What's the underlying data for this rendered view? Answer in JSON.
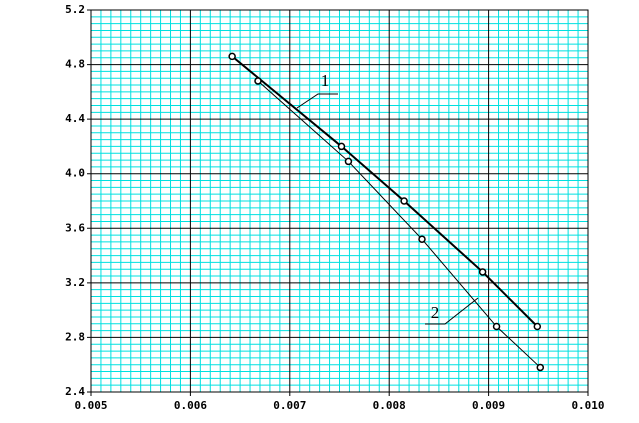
{
  "chart_data": {
    "type": "line",
    "xlim": [
      0.005,
      0.01
    ],
    "xticks": [
      0.005,
      0.006,
      0.007,
      0.008,
      0.009,
      {
        "value": 0.01,
        "label": "0.010"
      }
    ],
    "ylim": [
      2.4,
      5.2
    ],
    "yticks": [
      2.4,
      2.8,
      3.2,
      3.6,
      {
        "value": 4.0,
        "label": "4.0"
      },
      4.4,
      4.8,
      5.2
    ],
    "grid": true,
    "grid_color": "#00e0e0",
    "series": [
      {
        "name": "1",
        "color": "#000000",
        "x": [
          0.00642,
          0.00752,
          0.00815,
          0.00894,
          0.00949
        ],
        "values": [
          4.86,
          4.2,
          3.8,
          3.28,
          2.88
        ]
      },
      {
        "name": "2",
        "color": "#000000",
        "x": [
          0.00668,
          0.00759,
          0.00833,
          0.00908,
          0.00952
        ],
        "values": [
          4.68,
          4.09,
          3.52,
          2.88,
          2.58
        ]
      }
    ]
  }
}
